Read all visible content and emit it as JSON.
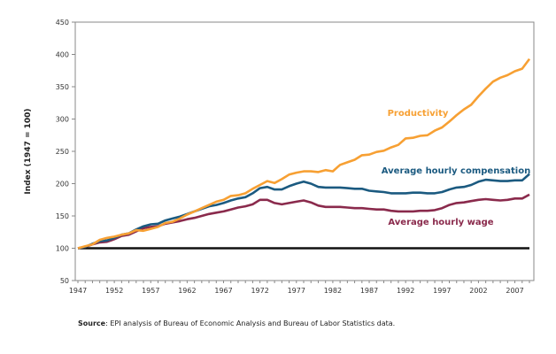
{
  "chart_data": {
    "type": "line",
    "title": "",
    "xlabel": "",
    "ylabel": "Index (1947 = 100)",
    "xlim": [
      1947,
      2009
    ],
    "ylim": [
      50,
      450
    ],
    "yticks": [
      50,
      100,
      150,
      200,
      250,
      300,
      350,
      400,
      450
    ],
    "xticks": [
      1947,
      1952,
      1957,
      1962,
      1967,
      1972,
      1977,
      1982,
      1987,
      1992,
      1997,
      2002,
      2007
    ],
    "grid": false,
    "reference_line": 100,
    "x_start": 1947,
    "series": [
      {
        "name": "Productivity",
        "color": "#f7a033",
        "values": [
          100,
          103,
          106,
          113,
          116,
          118,
          121,
          123,
          128,
          127,
          130,
          133,
          139,
          141,
          146,
          152,
          157,
          162,
          167,
          172,
          175,
          181,
          182,
          185,
          192,
          198,
          204,
          201,
          207,
          214,
          217,
          219,
          219,
          218,
          221,
          219,
          229,
          233,
          237,
          244,
          245,
          249,
          251,
          256,
          260,
          270,
          271,
          274,
          275,
          282,
          287,
          296,
          306,
          315,
          322,
          335,
          347,
          358,
          364,
          368,
          374,
          378,
          393
        ]
      },
      {
        "name": "Average hourly compensation",
        "color": "#1b5a80",
        "values": [
          100,
          102,
          107,
          111,
          112,
          116,
          121,
          123,
          129,
          134,
          137,
          138,
          143,
          146,
          149,
          153,
          157,
          161,
          165,
          167,
          170,
          174,
          177,
          179,
          185,
          193,
          195,
          191,
          191,
          196,
          200,
          203,
          200,
          195,
          194,
          194,
          194,
          193,
          192,
          192,
          189,
          188,
          187,
          185,
          185,
          185,
          186,
          186,
          185,
          185,
          187,
          191,
          194,
          195,
          198,
          203,
          206,
          205,
          204,
          204,
          205,
          205,
          215
        ]
      },
      {
        "name": "Average hourly wage",
        "color": "#8a2a4c",
        "values": [
          100,
          102,
          106,
          109,
          110,
          114,
          119,
          121,
          126,
          131,
          133,
          134,
          138,
          140,
          142,
          145,
          147,
          150,
          153,
          155,
          157,
          160,
          163,
          165,
          168,
          175,
          175,
          170,
          168,
          170,
          172,
          174,
          171,
          166,
          164,
          164,
          164,
          163,
          162,
          162,
          161,
          160,
          160,
          158,
          157,
          157,
          157,
          158,
          158,
          159,
          162,
          167,
          170,
          171,
          173,
          175,
          176,
          175,
          174,
          175,
          177,
          177,
          183
        ]
      }
    ]
  },
  "source": {
    "label": "Source",
    "text": ": EPI analysis of Bureau of Economic Analysis and Bureau of Labor Statistics data."
  }
}
